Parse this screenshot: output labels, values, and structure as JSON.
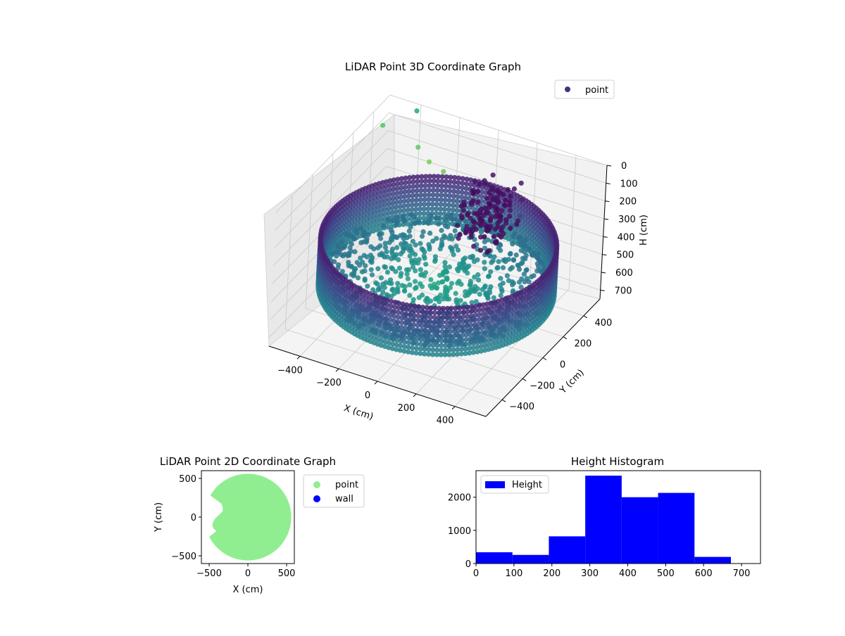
{
  "chart_data": [
    {
      "type": "scatter3d",
      "title": "LiDAR Point 3D Coordinate Graph",
      "xlabel": "X (cm)",
      "ylabel": "Y (cm)",
      "zlabel": "H (cm)",
      "xticks": [
        "−400",
        "−200",
        "0",
        "200",
        "400"
      ],
      "yticks": [
        "−400",
        "−200",
        "0",
        "200",
        "400"
      ],
      "zticks": [
        "0",
        "100",
        "200",
        "300",
        "400",
        "500",
        "600",
        "700"
      ],
      "xlim": [
        -560,
        560
      ],
      "ylim": [
        -560,
        560
      ],
      "zlim": [
        0,
        750
      ],
      "z_inverted": true,
      "grid": true,
      "legend": {
        "location": "upper-right",
        "entries": [
          {
            "name": "point",
            "color": "#472f7d"
          }
        ]
      },
      "colormap": "viridis",
      "wall": {
        "radius_cm": 540,
        "height_range_cm": [
          300,
          560
        ]
      },
      "outliers": [
        {
          "x": -550,
          "y": 480,
          "h": 120
        },
        {
          "x": -420,
          "y": 560,
          "h": 40
        },
        {
          "x": -360,
          "y": 470,
          "h": 170
        },
        {
          "x": -280,
          "y": 430,
          "h": 200
        },
        {
          "x": -200,
          "y": 420,
          "h": 220
        }
      ]
    },
    {
      "type": "scatter",
      "title": "LiDAR Point 2D Coordinate Graph",
      "xlabel": "X (cm)",
      "ylabel": "Y (cm)",
      "xticks": [
        "−500",
        "0",
        "500"
      ],
      "yticks": [
        "−500",
        "0",
        "500"
      ],
      "xlim": [
        -600,
        600
      ],
      "ylim": [
        -600,
        600
      ],
      "legend": {
        "location": "outside-right",
        "entries": [
          {
            "name": "point",
            "color": "#90ee90"
          },
          {
            "name": "wall",
            "color": "#0000ff"
          }
        ]
      },
      "point_cloud": {
        "radius_cm": 560,
        "color": "#90ee90"
      }
    },
    {
      "type": "bar",
      "title": "Height Histogram",
      "legend": {
        "location": "upper-left",
        "entries": [
          {
            "name": "Height",
            "color": "#0000ff"
          }
        ]
      },
      "xticks": [
        "0",
        "100",
        "200",
        "300",
        "400",
        "500",
        "600",
        "700"
      ],
      "yticks": [
        "0",
        "1000",
        "2000"
      ],
      "xlim": [
        0,
        750
      ],
      "ylim": [
        0,
        2800
      ],
      "bin_edges": [
        0,
        96,
        192,
        288,
        384,
        480,
        576,
        672
      ],
      "values": [
        340,
        260,
        820,
        2650,
        2000,
        2130,
        200
      ],
      "color": "#0000ff"
    }
  ]
}
